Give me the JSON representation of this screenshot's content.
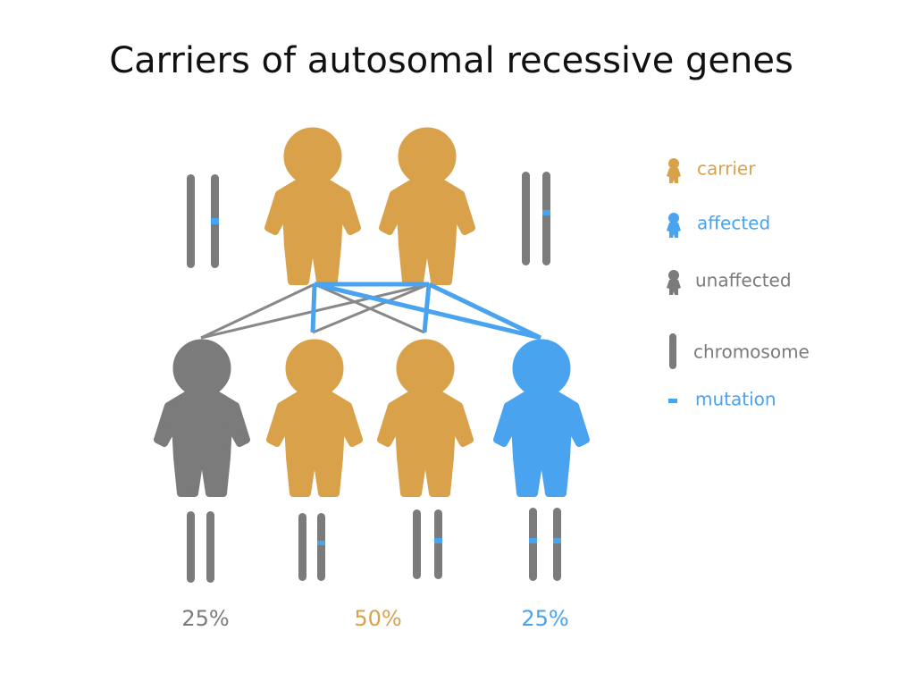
{
  "title": "Carriers of autosomal recessive genes",
  "legend": {
    "items": [
      "carrier",
      "affected",
      "unaffected",
      "chromosome",
      "mutation"
    ]
  },
  "outcomes": {
    "percentages": [
      "25%",
      "50%",
      "25%"
    ]
  }
}
